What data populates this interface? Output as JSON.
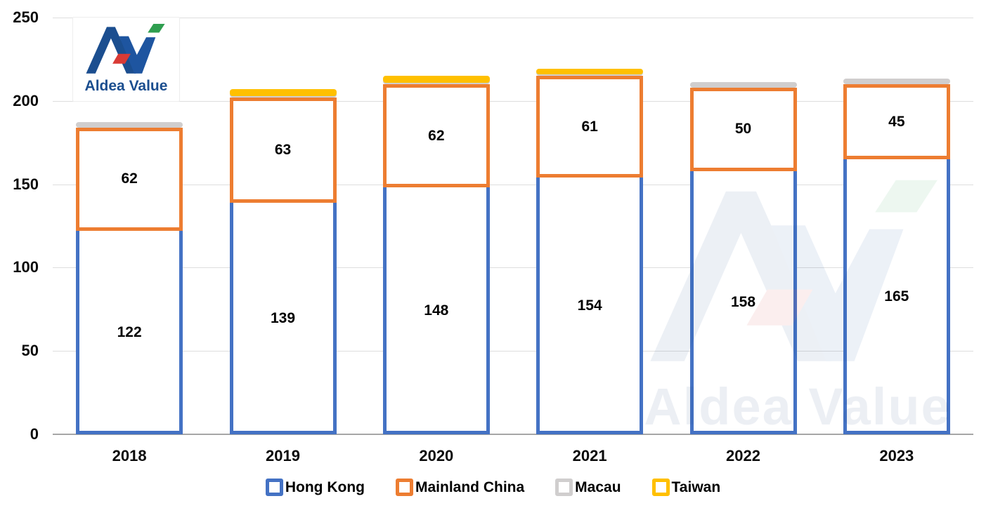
{
  "logo": {
    "text": "Aldea Value",
    "colors": {
      "blue_a": "#1b4e8f",
      "blue_v": "#1e55a0",
      "red": "#d93a35",
      "green": "#2f9e4f"
    }
  },
  "watermark": {
    "text": "Aldea Value"
  },
  "chart_data": {
    "type": "bar",
    "stacked": true,
    "title": "",
    "xlabel": "",
    "ylabel": "",
    "categories": [
      "2018",
      "2019",
      "2020",
      "2021",
      "2022",
      "2023"
    ],
    "series": [
      {
        "name": "Hong Kong",
        "color": "#4472C4",
        "values": [
          122,
          139,
          148,
          154,
          158,
          165
        ],
        "labeled": true,
        "style": "outlined"
      },
      {
        "name": "Mainland China",
        "color": "#ED7D31",
        "values": [
          62,
          63,
          62,
          61,
          50,
          45
        ],
        "labeled": true,
        "style": "outlined"
      },
      {
        "name": "Macau",
        "color": "#D0CECE",
        "values": [
          2,
          1,
          1,
          1,
          3,
          3
        ],
        "labeled": false,
        "style": "solid-cap",
        "estimated": true
      },
      {
        "name": "Taiwan",
        "color": "#FFC000",
        "values": [
          0,
          4,
          4,
          2,
          0,
          0
        ],
        "labeled": false,
        "style": "solid-cap",
        "estimated": true
      }
    ],
    "ylim": [
      0,
      250
    ],
    "yticks": [
      0,
      50,
      100,
      150,
      200,
      250
    ],
    "ytick_labels": [
      "0",
      "50",
      "100",
      "150",
      "200",
      "250"
    ],
    "grid": true,
    "gridline_color": "#DEDEDE",
    "axis_line_color": "#A6A6A6",
    "legend_position": "bottom"
  }
}
